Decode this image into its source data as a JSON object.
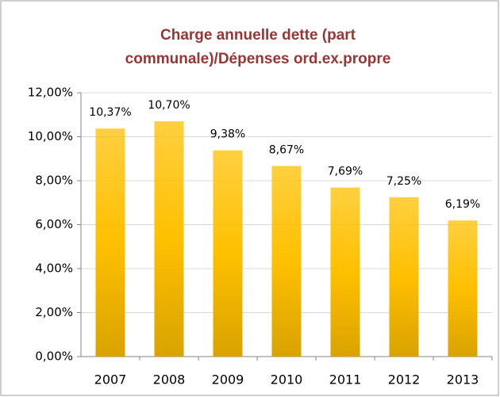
{
  "chart_data": {
    "type": "bar",
    "title": [
      "Charge annuelle dette (part",
      "communale)/Dépenses ord.ex.propre"
    ],
    "categories": [
      "2007",
      "2008",
      "2009",
      "2010",
      "2011",
      "2012",
      "2013"
    ],
    "values": [
      10.37,
      10.7,
      9.38,
      8.67,
      7.69,
      7.25,
      6.19
    ],
    "value_labels": [
      "10,37%",
      "10,70%",
      "9,38%",
      "8,67%",
      "7,69%",
      "7,25%",
      "6,19%"
    ],
    "color": "#ffc000",
    "ylim": [
      0,
      12
    ],
    "yticks": [
      {
        "value": 0,
        "label": "0,00%"
      },
      {
        "value": 2,
        "label": "2,00%"
      },
      {
        "value": 4,
        "label": "4,00%"
      },
      {
        "value": 6,
        "label": "6,00%"
      },
      {
        "value": 8,
        "label": "8,00%"
      },
      {
        "value": 10,
        "label": "10,00%"
      },
      {
        "value": 12,
        "label": "12,00%"
      }
    ],
    "grid": true
  }
}
